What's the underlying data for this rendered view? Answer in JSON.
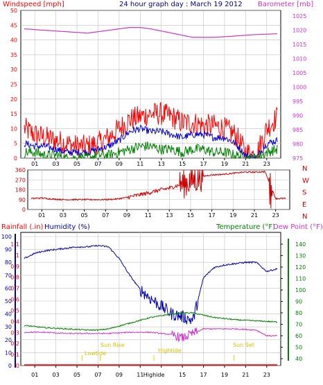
{
  "texts": {
    "title": "24 hour graph day : March 19 2012",
    "left_top_label": "Windspeed [mph]",
    "right_top_label": "Barometer [mb]",
    "left_bot_label_1": "Rainfall (.in)",
    "left_bot_label_2": "Humidity (%)",
    "right_bot_label_1": "Temperature (°F)",
    "right_bot_label_2": "Dew Point (°F)",
    "ann_lowtide": "Lowtide",
    "ann_sunrise": "Sun Rise",
    "ann_hightide": "Hightide",
    "ann_highide_axis": "Highide",
    "ann_sunset": "Sun Set"
  },
  "colors": {
    "frame": "#000000",
    "grid": "#c0c0c0",
    "wind": "#ff0000",
    "wind_avg": "#0000cc",
    "wind_low": "#008000",
    "baro": "#cc33cc",
    "title": "#000080",
    "direction": "#cc0000",
    "humidity": "#0000aa",
    "temperature": "#008000",
    "dewpoint": "#cc33cc",
    "rain": "#ff0000",
    "annot": "#e6d200"
  },
  "chart_data": [
    {
      "type": "line",
      "name": "wind_barometer",
      "x_ticks": [
        "01",
        "03",
        "05",
        "07",
        "09",
        "11",
        "13",
        "15",
        "17",
        "19",
        "21",
        "23"
      ],
      "y_left": {
        "label": "Windspeed [mph]",
        "ticks": [
          0,
          5,
          10,
          15,
          20,
          25,
          30,
          35,
          40,
          45,
          50
        ],
        "range": [
          0,
          50
        ]
      },
      "y_right": {
        "label": "Barometer [mb]",
        "ticks": [
          975,
          980,
          985,
          990,
          995,
          1000,
          1005,
          1010,
          1015,
          1020,
          1025
        ],
        "range": [
          975,
          1027
        ]
      },
      "series": [
        {
          "key": "gust",
          "hours": [
            0,
            1,
            2,
            3,
            4,
            5,
            6,
            7,
            8,
            9,
            10,
            11,
            12,
            13,
            14,
            15,
            16,
            17,
            18,
            19,
            20,
            21,
            22,
            23,
            24
          ],
          "values": [
            10,
            8,
            7,
            6,
            5,
            4,
            4,
            5,
            7,
            10,
            13,
            14,
            15,
            15,
            14,
            12,
            12,
            11,
            11,
            10,
            8,
            2,
            1,
            10,
            14
          ]
        },
        {
          "key": "average",
          "hours": [
            0,
            1,
            2,
            3,
            4,
            5,
            6,
            7,
            8,
            9,
            10,
            11,
            12,
            13,
            14,
            15,
            16,
            17,
            18,
            19,
            20,
            21,
            22,
            23,
            24
          ],
          "values": [
            5,
            4,
            4,
            3,
            2,
            2,
            2,
            3,
            4,
            6,
            9,
            10,
            9,
            9,
            8,
            7,
            8,
            8,
            7,
            7,
            5,
            1,
            0,
            5,
            6
          ]
        },
        {
          "key": "low",
          "hours": [
            0,
            1,
            2,
            3,
            4,
            5,
            6,
            7,
            8,
            9,
            10,
            11,
            12,
            13,
            14,
            15,
            16,
            17,
            18,
            19,
            20,
            21,
            22,
            23,
            24
          ],
          "values": [
            2,
            2,
            1,
            1,
            0,
            0,
            0,
            1,
            1,
            2,
            3,
            4,
            4,
            3,
            3,
            2,
            3,
            3,
            2,
            2,
            1,
            0,
            0,
            2,
            3
          ]
        },
        {
          "key": "barometer",
          "hours": [
            0,
            2,
            4,
            6,
            8,
            10,
            11,
            12,
            14,
            16,
            18,
            20,
            22,
            24
          ],
          "values": [
            1020.5,
            1020,
            1019.5,
            1019,
            1020,
            1021,
            1021,
            1020.5,
            1019,
            1017.5,
            1017.5,
            1018,
            1018.5,
            1018.8
          ]
        }
      ]
    },
    {
      "type": "scatter",
      "name": "wind_direction",
      "x_ticks": [
        "01",
        "03",
        "05",
        "07",
        "09",
        "11",
        "13",
        "15",
        "17",
        "19",
        "21",
        "23"
      ],
      "y_left_ticks": [
        0,
        90,
        180,
        270,
        360
      ],
      "y_right_ticks": [
        "N",
        "W",
        "S",
        "E",
        "N"
      ],
      "range": [
        0,
        360
      ],
      "series": [
        {
          "key": "direction",
          "hours": [
            0,
            1,
            2,
            3,
            4,
            5,
            6,
            7,
            8,
            9,
            10,
            11,
            12,
            13,
            14,
            15,
            16,
            17,
            18,
            19,
            20,
            21,
            22,
            23,
            24
          ],
          "values": [
            100,
            105,
            95,
            90,
            90,
            90,
            90,
            90,
            95,
            110,
            130,
            150,
            175,
            195,
            225,
            260,
            300,
            315,
            320,
            330,
            340,
            340,
            345,
            100,
            100
          ]
        }
      ]
    },
    {
      "type": "line",
      "name": "humidity_temperature",
      "x_ticks": [
        "01",
        "03",
        "05",
        "07",
        "09",
        "11",
        "13",
        "15",
        "17",
        "19",
        "21",
        "23"
      ],
      "y_left_ticks": [
        0,
        10,
        20,
        30,
        40,
        50,
        60,
        70,
        80,
        90,
        100
      ],
      "y_rain_ticks": [
        0,
        0.1,
        0.2,
        0.3,
        0.4,
        0.5,
        0.6,
        0.7,
        0.8,
        0.9,
        1,
        1.1
      ],
      "y_right_ticks": [
        40,
        50,
        60,
        70,
        80,
        90,
        100,
        110,
        120,
        130,
        140
      ],
      "series": [
        {
          "key": "humidity",
          "hours": [
            0,
            1,
            2,
            3,
            4,
            5,
            6,
            7,
            8,
            9,
            10,
            11,
            12,
            13,
            14,
            15,
            16,
            17,
            18,
            19,
            20,
            21,
            22,
            23,
            24
          ],
          "values": [
            83,
            87,
            89,
            90,
            91,
            92,
            92,
            93,
            92,
            83,
            70,
            59,
            52,
            46,
            40,
            38,
            35,
            68,
            76,
            78,
            79,
            80,
            80,
            73,
            75
          ]
        },
        {
          "key": "temperature",
          "hours": [
            0,
            2,
            4,
            6,
            7,
            8,
            10,
            12,
            14,
            15,
            16,
            17,
            18,
            20,
            22,
            24
          ],
          "values": [
            69,
            67,
            66,
            65,
            65,
            66,
            71,
            76,
            79,
            80,
            80,
            78,
            76,
            74,
            73,
            72
          ]
        },
        {
          "key": "dewpoint",
          "hours": [
            0,
            2,
            4,
            6,
            8,
            10,
            12,
            14,
            15,
            16,
            17,
            18,
            20,
            22,
            23,
            24
          ],
          "values": [
            63,
            63,
            62,
            62,
            62,
            63,
            63,
            61,
            58,
            62,
            66,
            66,
            66,
            65,
            60,
            60
          ]
        },
        {
          "key": "rainfall",
          "hours": [
            0,
            24
          ],
          "values": [
            0,
            0
          ]
        }
      ],
      "annotations": [
        {
          "text": "Lowtide",
          "hour": 5.5
        },
        {
          "text": "Sun Rise",
          "hour": 7.2
        },
        {
          "text": "Hightide",
          "hour": 12.3
        },
        {
          "text": "Sun Set",
          "hour": 19.9
        }
      ]
    }
  ]
}
